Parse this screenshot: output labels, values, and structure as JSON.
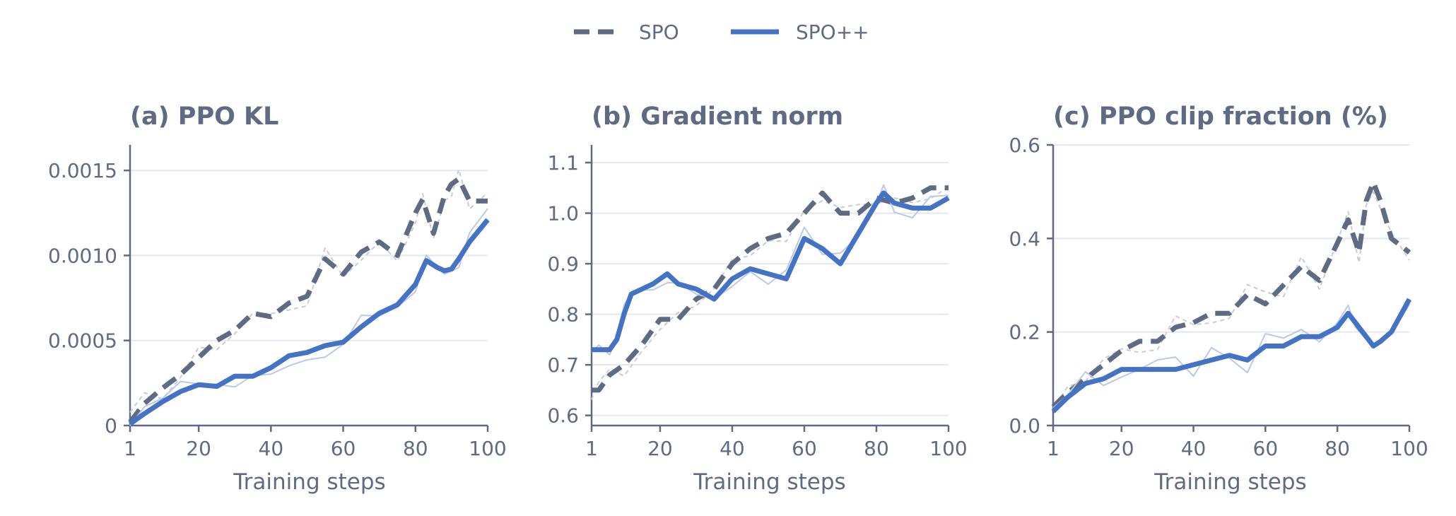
{
  "legend": {
    "items": [
      {
        "label": "SPO",
        "style": "dashed",
        "color": "#5f6b83"
      },
      {
        "label": "SPO++",
        "style": "solid",
        "color": "#4472c4"
      }
    ]
  },
  "colors": {
    "spo": "#5f6b83",
    "spo_raw": "#c9ccd3",
    "spopp": "#4472c4",
    "spopp_raw": "#b9c9ea",
    "axis": "#5f6b83",
    "grid": "#e5e7ef",
    "text": "#5f6b83"
  },
  "chart_data": [
    {
      "type": "line",
      "title": "(a) PPO KL",
      "xlabel": "Training steps",
      "ylabel": "",
      "xlim": [
        1,
        100
      ],
      "ylim": [
        0,
        0.00165
      ],
      "xticks": [
        1,
        20,
        40,
        60,
        80,
        100
      ],
      "xtick_labels": [
        "1",
        "20",
        "40",
        "60",
        "80",
        "100"
      ],
      "yticks": [
        0,
        0.0005,
        0.001,
        0.0015
      ],
      "ytick_labels": [
        "0",
        "0.0005",
        "0.0010",
        "0.0015"
      ],
      "grid": "horizontal",
      "series": [
        {
          "name": "SPO",
          "style": "dashed",
          "x": [
            1,
            5,
            10,
            15,
            20,
            25,
            30,
            35,
            40,
            45,
            50,
            55,
            60,
            65,
            70,
            75,
            80,
            82,
            85,
            88,
            90,
            92,
            95,
            100
          ],
          "y": [
            2e-05,
            0.00013,
            0.00022,
            0.0003,
            0.0004,
            0.0005,
            0.00056,
            0.00066,
            0.00064,
            0.00072,
            0.00076,
            0.00098,
            0.00089,
            0.00102,
            0.00108,
            0.001,
            0.00125,
            0.00133,
            0.00113,
            0.00135,
            0.00142,
            0.00145,
            0.00132,
            0.00132
          ]
        },
        {
          "name": "SPO++",
          "style": "solid",
          "x": [
            1,
            5,
            10,
            15,
            20,
            25,
            30,
            35,
            40,
            45,
            50,
            55,
            60,
            65,
            70,
            75,
            80,
            83,
            86,
            88,
            90,
            92,
            95,
            100
          ],
          "y": [
            1e-05,
            7e-05,
            0.00014,
            0.0002,
            0.00024,
            0.00023,
            0.00029,
            0.00029,
            0.00034,
            0.00041,
            0.00043,
            0.00047,
            0.00049,
            0.00058,
            0.00066,
            0.00071,
            0.00083,
            0.00097,
            0.00093,
            0.00091,
            0.00092,
            0.00098,
            0.00108,
            0.00121
          ]
        }
      ]
    },
    {
      "type": "line",
      "title": "(b) Gradient norm",
      "xlabel": "Training steps",
      "ylabel": "",
      "xlim": [
        1,
        100
      ],
      "ylim": [
        0.58,
        1.135
      ],
      "xticks": [
        1,
        20,
        40,
        60,
        80,
        100
      ],
      "xtick_labels": [
        "1",
        "20",
        "40",
        "60",
        "80",
        "100"
      ],
      "yticks": [
        0.6,
        0.7,
        0.8,
        0.9,
        1.0,
        1.1
      ],
      "ytick_labels": [
        "0.6",
        "0.7",
        "0.8",
        "0.9",
        "1.0",
        "1.1"
      ],
      "grid": "horizontal",
      "series": [
        {
          "name": "SPO",
          "style": "dashed",
          "x": [
            1,
            3,
            6,
            10,
            15,
            20,
            25,
            30,
            35,
            40,
            45,
            50,
            55,
            60,
            65,
            70,
            75,
            80,
            85,
            90,
            95,
            100
          ],
          "y": [
            0.65,
            0.65,
            0.68,
            0.7,
            0.74,
            0.79,
            0.79,
            0.83,
            0.85,
            0.9,
            0.93,
            0.95,
            0.96,
            1.0,
            1.04,
            1.0,
            1.0,
            1.03,
            1.02,
            1.03,
            1.05,
            1.05
          ]
        },
        {
          "name": "SPO++",
          "style": "solid",
          "x": [
            1,
            3,
            6,
            8,
            10,
            12,
            15,
            18,
            22,
            25,
            30,
            35,
            40,
            45,
            50,
            55,
            60,
            65,
            70,
            75,
            80,
            82,
            85,
            90,
            95,
            100
          ],
          "y": [
            0.73,
            0.73,
            0.73,
            0.75,
            0.8,
            0.84,
            0.85,
            0.86,
            0.88,
            0.86,
            0.85,
            0.83,
            0.87,
            0.89,
            0.88,
            0.87,
            0.95,
            0.93,
            0.9,
            0.96,
            1.02,
            1.04,
            1.02,
            1.01,
            1.01,
            1.03
          ]
        }
      ]
    },
    {
      "type": "line",
      "title": "(c) PPO clip fraction (%)",
      "xlabel": "Training steps",
      "ylabel": "",
      "xlim": [
        1,
        100
      ],
      "ylim": [
        0,
        0.6
      ],
      "xticks": [
        1,
        20,
        40,
        60,
        80,
        100
      ],
      "xtick_labels": [
        "1",
        "20",
        "40",
        "60",
        "80",
        "100"
      ],
      "yticks": [
        0.0,
        0.2,
        0.4,
        0.6
      ],
      "ytick_labels": [
        "0.0",
        "0.2",
        "0.4",
        "0.6"
      ],
      "grid": "horizontal",
      "series": [
        {
          "name": "SPO",
          "style": "dashed",
          "x": [
            1,
            5,
            10,
            15,
            20,
            25,
            30,
            35,
            40,
            45,
            50,
            55,
            60,
            65,
            70,
            75,
            80,
            83,
            86,
            88,
            90,
            92,
            95,
            100
          ],
          "y": [
            0.04,
            0.07,
            0.1,
            0.13,
            0.16,
            0.18,
            0.18,
            0.21,
            0.22,
            0.24,
            0.24,
            0.28,
            0.26,
            0.3,
            0.34,
            0.31,
            0.39,
            0.44,
            0.37,
            0.48,
            0.52,
            0.48,
            0.4,
            0.37
          ]
        },
        {
          "name": "SPO++",
          "style": "solid",
          "x": [
            1,
            5,
            10,
            15,
            20,
            25,
            30,
            35,
            40,
            45,
            50,
            55,
            60,
            65,
            70,
            75,
            80,
            83,
            85,
            88,
            90,
            92,
            95,
            100
          ],
          "y": [
            0.03,
            0.06,
            0.09,
            0.1,
            0.12,
            0.12,
            0.12,
            0.12,
            0.13,
            0.14,
            0.15,
            0.14,
            0.17,
            0.17,
            0.19,
            0.19,
            0.21,
            0.24,
            0.22,
            0.19,
            0.17,
            0.18,
            0.2,
            0.27
          ]
        }
      ]
    }
  ]
}
